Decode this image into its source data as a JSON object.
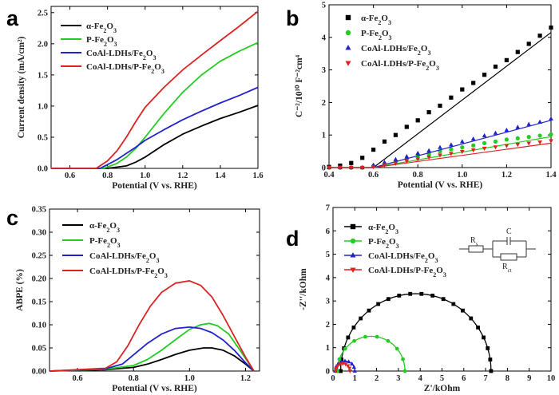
{
  "chart_data": [
    {
      "panel": "a",
      "type": "line",
      "xlabel": "Potential (V vs. RHE)",
      "ylabel": "Current density (mA/cm²)",
      "xlim": [
        0.5,
        1.6
      ],
      "ylim": [
        0,
        2.6
      ],
      "xticks": [
        "0.6",
        "0.8",
        "1.0",
        "1.2",
        "1.4",
        "1.6"
      ],
      "yticks": [
        "0.0",
        "0.5",
        "1.0",
        "1.5",
        "2.0",
        "2.5"
      ],
      "legend_position": "top-left",
      "series": [
        {
          "name": "α-Fe₂O₃",
          "color": "#000000",
          "x": [
            0.5,
            0.8,
            0.9,
            0.95,
            1.0,
            1.05,
            1.1,
            1.2,
            1.3,
            1.4,
            1.5,
            1.6
          ],
          "y": [
            0,
            0.0,
            0.04,
            0.1,
            0.18,
            0.28,
            0.38,
            0.55,
            0.68,
            0.8,
            0.9,
            1.01
          ]
        },
        {
          "name": "P-Fe₂O₃",
          "color": "#22cc22",
          "x": [
            0.5,
            0.78,
            0.85,
            0.9,
            0.95,
            1.0,
            1.1,
            1.2,
            1.3,
            1.4,
            1.5,
            1.6
          ],
          "y": [
            0,
            0.0,
            0.08,
            0.18,
            0.32,
            0.5,
            0.88,
            1.22,
            1.5,
            1.72,
            1.88,
            2.02
          ]
        },
        {
          "name": "CoAl-LDHs/Fe₂O₃",
          "color": "#2222cc",
          "x": [
            0.5,
            0.76,
            0.8,
            0.85,
            0.9,
            0.95,
            1.0,
            1.1,
            1.2,
            1.3,
            1.4,
            1.5,
            1.6
          ],
          "y": [
            0,
            0.0,
            0.06,
            0.14,
            0.24,
            0.34,
            0.45,
            0.62,
            0.78,
            0.92,
            1.05,
            1.17,
            1.3
          ]
        },
        {
          "name": "CoAl-LDHs/P-Fe₂O₃",
          "color": "#dd2222",
          "x": [
            0.5,
            0.74,
            0.8,
            0.85,
            0.9,
            0.95,
            1.0,
            1.1,
            1.2,
            1.3,
            1.4,
            1.5,
            1.6
          ],
          "y": [
            0,
            0.0,
            0.12,
            0.28,
            0.5,
            0.75,
            0.98,
            1.3,
            1.58,
            1.82,
            2.05,
            2.28,
            2.52
          ]
        }
      ]
    },
    {
      "panel": "b",
      "type": "scatter",
      "xlabel": "Potential (V vs. RHE)",
      "ylabel": "C⁻²/10¹⁰ F⁻²cm⁴",
      "xlim": [
        0.4,
        1.4
      ],
      "ylim": [
        0,
        5
      ],
      "xticks": [
        "0.4",
        "0.6",
        "0.8",
        "1.0",
        "1.2",
        "1.4"
      ],
      "yticks": [
        "0",
        "1",
        "2",
        "3",
        "4",
        "5"
      ],
      "legend_position": "top-left",
      "x": [
        0.4,
        0.45,
        0.5,
        0.55,
        0.6,
        0.65,
        0.7,
        0.75,
        0.8,
        0.85,
        0.9,
        0.95,
        1.0,
        1.05,
        1.1,
        1.15,
        1.2,
        1.25,
        1.3,
        1.35,
        1.4
      ],
      "series": [
        {
          "name": "α-Fe₂O₃",
          "color": "#000000",
          "marker": "square",
          "values": [
            0.02,
            0.06,
            0.14,
            0.3,
            0.55,
            0.8,
            1.0,
            1.25,
            1.45,
            1.7,
            1.9,
            2.15,
            2.4,
            2.6,
            2.85,
            3.1,
            3.3,
            3.55,
            3.8,
            4.05,
            4.3
          ],
          "fit": [
            [
              0.6,
              0.0
            ],
            [
              1.4,
              4.15
            ]
          ]
        },
        {
          "name": "P-Fe₂O₃",
          "color": "#22cc22",
          "marker": "circle",
          "values": [
            0.0,
            0.0,
            0.0,
            0.0,
            0.05,
            0.12,
            0.2,
            0.28,
            0.36,
            0.42,
            0.5,
            0.56,
            0.62,
            0.68,
            0.75,
            0.8,
            0.86,
            0.9,
            0.94,
            0.98,
            1.02
          ],
          "fit": [
            [
              0.6,
              0.0
            ],
            [
              1.4,
              0.95
            ]
          ]
        },
        {
          "name": "CoAl-LDHs/Fe₂O₃",
          "color": "#2222cc",
          "marker": "triangle-up",
          "values": [
            0.0,
            0.0,
            0.0,
            0.0,
            0.08,
            0.16,
            0.25,
            0.34,
            0.44,
            0.52,
            0.62,
            0.7,
            0.8,
            0.88,
            0.98,
            1.06,
            1.15,
            1.24,
            1.33,
            1.4,
            1.5
          ],
          "fit": [
            [
              0.6,
              0.0
            ],
            [
              1.4,
              1.45
            ]
          ]
        },
        {
          "name": "CoAl-LDHs/P-Fe₂O₃",
          "color": "#dd2222",
          "marker": "triangle-down",
          "values": [
            0.0,
            0.0,
            0.0,
            0.0,
            0.02,
            0.08,
            0.13,
            0.2,
            0.26,
            0.32,
            0.38,
            0.43,
            0.49,
            0.54,
            0.59,
            0.63,
            0.67,
            0.71,
            0.75,
            0.78,
            0.82
          ],
          "fit": [
            [
              0.6,
              0.0
            ],
            [
              1.4,
              0.75
            ]
          ]
        }
      ]
    },
    {
      "panel": "c",
      "type": "line",
      "xlabel": "Potential (V vs. RHE)",
      "ylabel": "ABPE (%)",
      "xlim": [
        0.5,
        1.25
      ],
      "ylim": [
        0,
        0.35
      ],
      "xticks": [
        "0.6",
        "0.8",
        "1.0",
        "1.2"
      ],
      "yticks": [
        "0.00",
        "0.05",
        "0.10",
        "0.15",
        "0.20",
        "0.25",
        "0.30",
        "0.35"
      ],
      "legend_position": "top-left",
      "series": [
        {
          "name": "α-Fe₂O₃",
          "color": "#000000",
          "x": [
            0.5,
            0.7,
            0.8,
            0.85,
            0.9,
            0.95,
            1.0,
            1.05,
            1.08,
            1.12,
            1.16,
            1.2,
            1.23
          ],
          "y": [
            0,
            0.003,
            0.008,
            0.015,
            0.025,
            0.036,
            0.045,
            0.05,
            0.05,
            0.045,
            0.033,
            0.015,
            0.0
          ]
        },
        {
          "name": "P-Fe₂O₃",
          "color": "#22cc22",
          "x": [
            0.5,
            0.7,
            0.8,
            0.85,
            0.9,
            0.95,
            1.0,
            1.04,
            1.07,
            1.1,
            1.14,
            1.18,
            1.23
          ],
          "y": [
            0,
            0.004,
            0.012,
            0.025,
            0.045,
            0.068,
            0.09,
            0.1,
            0.103,
            0.098,
            0.08,
            0.045,
            0.0
          ]
        },
        {
          "name": "CoAl-LDHs/Fe₂O₃",
          "color": "#2222cc",
          "x": [
            0.5,
            0.7,
            0.76,
            0.8,
            0.85,
            0.9,
            0.95,
            1.0,
            1.04,
            1.08,
            1.12,
            1.16,
            1.2,
            1.23
          ],
          "y": [
            0,
            0.005,
            0.015,
            0.035,
            0.06,
            0.08,
            0.092,
            0.095,
            0.092,
            0.083,
            0.067,
            0.045,
            0.018,
            0.0
          ]
        },
        {
          "name": "CoAl-LDHs/P-Fe₂O₃",
          "color": "#dd2222",
          "x": [
            0.5,
            0.7,
            0.74,
            0.78,
            0.82,
            0.86,
            0.9,
            0.95,
            1.0,
            1.04,
            1.08,
            1.12,
            1.16,
            1.2,
            1.23
          ],
          "y": [
            0,
            0.006,
            0.02,
            0.055,
            0.1,
            0.14,
            0.17,
            0.19,
            0.195,
            0.185,
            0.16,
            0.12,
            0.075,
            0.03,
            0.0
          ]
        }
      ]
    },
    {
      "panel": "d",
      "type": "scatter",
      "xlabel": "Z'/kOhm",
      "ylabel": "-Z''/kOhm",
      "xlim": [
        0,
        10
      ],
      "ylim": [
        0,
        7
      ],
      "xticks": [
        "0",
        "1",
        "2",
        "3",
        "4",
        "5",
        "6",
        "7",
        "8",
        "9",
        "10"
      ],
      "yticks": [
        "0",
        "1",
        "2",
        "3",
        "4",
        "5",
        "6",
        "7"
      ],
      "legend_position": "top-left",
      "inset_circuit": {
        "labels": [
          "Rs",
          "C",
          "Rct"
        ]
      },
      "series": [
        {
          "name": "α-Fe₂O₃",
          "color": "#000000",
          "marker": "square",
          "center": 3.8,
          "radius": 3.45,
          "xmin": 0.15,
          "xmax": 7.7
        },
        {
          "name": "P-Fe₂O₃",
          "color": "#22cc22",
          "marker": "circle",
          "center": 1.75,
          "radius": 1.55,
          "xmin": 0.15,
          "xmax": 3.55
        },
        {
          "name": "CoAl-LDHs/Fe₂O₃",
          "color": "#2222cc",
          "marker": "triangle-up",
          "center": 0.55,
          "radius": 0.45,
          "xmin": 0.1,
          "xmax": 1.05
        },
        {
          "name": "CoAl-LDHs/P-Fe₂O₃",
          "color": "#dd2222",
          "marker": "triangle-down",
          "center": 0.45,
          "radius": 0.33,
          "xmin": 0.1,
          "xmax": 0.8
        }
      ]
    }
  ]
}
